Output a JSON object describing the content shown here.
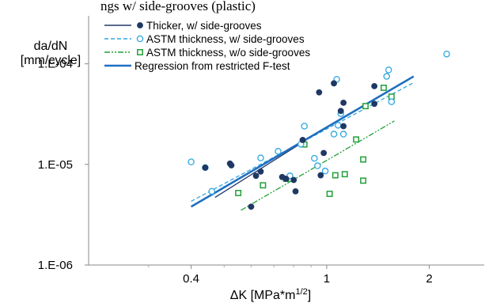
{
  "header_fragment": "ngs w/ side-grooves (plastic)",
  "chart_data": {
    "type": "scatter",
    "xscale": "log",
    "yscale": "log",
    "xlim": [
      0.2,
      2.9
    ],
    "ylim": [
      1e-06,
      0.0003
    ],
    "x_ticks": [
      {
        "value": 0.4,
        "label": "0.4"
      },
      {
        "value": 1,
        "label": "1"
      },
      {
        "value": 2,
        "label": "2"
      }
    ],
    "y_ticks": [
      {
        "value": 0.0001,
        "label": "1.E-04"
      },
      {
        "value": 1e-05,
        "label": "1.E-05"
      },
      {
        "value": 1e-06,
        "label": "1.E-06"
      }
    ],
    "xlabel": "ΔK [MPa*m",
    "xlabel_sup": "1/2",
    "xlabel_end": "]",
    "ylabel_line1": "da/dN",
    "ylabel_line2": "[mm/cycle]",
    "grid": false,
    "legend_position": "top-left",
    "legend": [
      {
        "label": "Thicker, w/ side-grooves",
        "color": "#1f3864",
        "marker": "filled-circle",
        "line": "solid"
      },
      {
        "label": "ASTM thickness, w/ side-grooves",
        "color": "#2ea6e0",
        "marker": "open-circle",
        "line": "dashed"
      },
      {
        "label": "ASTM thickness, w/o side-grooves",
        "color": "#21a038",
        "marker": "open-square",
        "line": "dashdotdot"
      },
      {
        "label": "Regression from restricted F-test",
        "color": "#1f6fc2",
        "marker": "none",
        "line": "solid-thick"
      }
    ],
    "series": [
      {
        "name": "Thicker, w/ side-grooves",
        "color": "#1f3864",
        "marker": "filled-circle",
        "points": [
          [
            0.44,
            9.3e-06
          ],
          [
            0.52,
            1.02e-05
          ],
          [
            0.525,
            9.8e-06
          ],
          [
            0.6,
            3.8e-06
          ],
          [
            0.62,
            7.7e-06
          ],
          [
            0.64,
            8.5e-06
          ],
          [
            0.74,
            7.5e-06
          ],
          [
            0.76,
            7.2e-06
          ],
          [
            0.8,
            7e-06
          ],
          [
            0.81,
            5.4e-06
          ],
          [
            0.85,
            1.75e-05
          ],
          [
            0.95,
            5.2e-05
          ],
          [
            0.96,
            7.8e-06
          ],
          [
            0.98,
            1.3e-05
          ],
          [
            1.05,
            6.4e-05
          ],
          [
            1.1,
            3.4e-05
          ],
          [
            1.12,
            4.1e-05
          ],
          [
            1.12,
            2.4e-05
          ],
          [
            1.38,
            6e-05
          ],
          [
            1.38,
            4e-05
          ]
        ],
        "fit": {
          "x1": 0.47,
          "y1": 4.7e-06,
          "x2": 0.86,
          "y2": 1.7e-05
        }
      },
      {
        "name": "ASTM thickness, w/ side-grooves",
        "color": "#2ea6e0",
        "marker": "open-circle",
        "points": [
          [
            0.4,
            1.06e-05
          ],
          [
            0.44,
            9.3e-06
          ],
          [
            0.46,
            5.4e-06
          ],
          [
            0.64,
            1.16e-05
          ],
          [
            0.72,
            1.35e-05
          ],
          [
            0.78,
            7.7e-06
          ],
          [
            0.84,
            1.59e-05
          ],
          [
            0.86,
            2.4e-05
          ],
          [
            0.92,
            1.15e-05
          ],
          [
            0.94,
            9.7e-06
          ],
          [
            0.99,
            8.6e-06
          ],
          [
            1.05,
            2e-05
          ],
          [
            1.07,
            7e-05
          ],
          [
            1.08,
            2.45e-05
          ],
          [
            1.1,
            3.2e-05
          ],
          [
            1.12,
            2e-05
          ],
          [
            1.5,
            7.5e-05
          ],
          [
            1.52,
            8.7e-05
          ],
          [
            1.55,
            4.2e-05
          ],
          [
            2.25,
            0.000125
          ]
        ],
        "fit": {
          "x1": 0.4,
          "y1": 4.3e-06,
          "x2": 1.8,
          "y2": 6.5e-05
        }
      },
      {
        "name": "ASTM thickness, w/o side-grooves",
        "color": "#21a038",
        "marker": "open-square",
        "points": [
          [
            0.55,
            5.2e-06
          ],
          [
            0.65,
            6.2e-06
          ],
          [
            0.76,
            7.2e-06
          ],
          [
            0.86,
            1.58e-05
          ],
          [
            1.02,
            5.1e-06
          ],
          [
            1.06,
            7.8e-06
          ],
          [
            1.13,
            8e-06
          ],
          [
            1.22,
            1.77e-05
          ],
          [
            1.28,
            1.12e-05
          ],
          [
            1.28,
            6.9e-06
          ],
          [
            1.3,
            3.8e-05
          ],
          [
            1.47,
            5.78e-05
          ],
          [
            1.55,
            4.72e-05
          ]
        ],
        "fit": {
          "x1": 0.56,
          "y1": 3.5e-06,
          "x2": 1.58,
          "y2": 2.7e-05
        }
      }
    ],
    "regression": {
      "x1": 0.4,
      "y1": 3.8e-06,
      "x2": 1.8,
      "y2": 7.5e-05
    }
  }
}
